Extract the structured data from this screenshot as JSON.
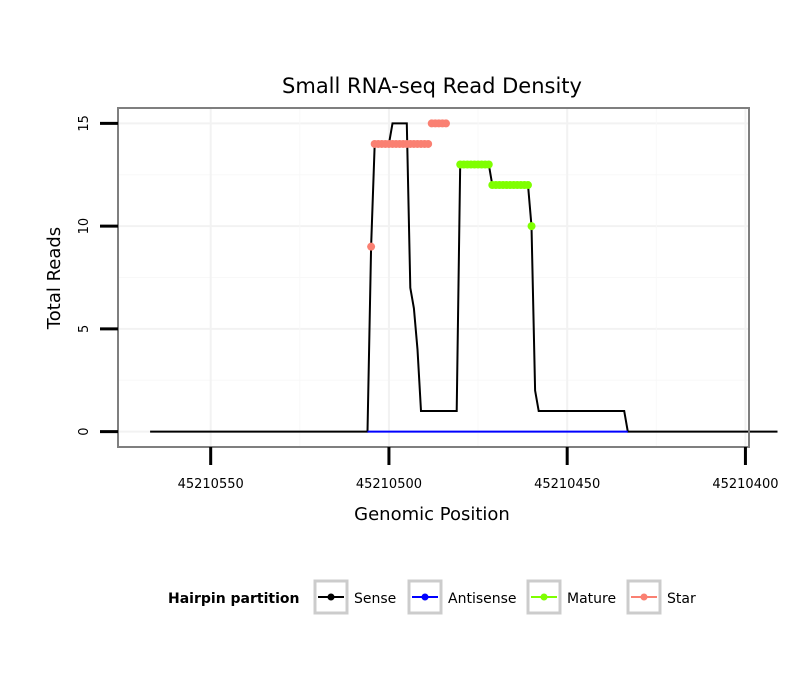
{
  "chart_data": {
    "type": "line",
    "title": "Small RNA-seq Read Density",
    "xlabel": "Genomic Position",
    "ylabel": "Total Reads",
    "x_reversed": true,
    "xlim": [
      45210576,
      45210399
    ],
    "ylim": [
      -0.75,
      15.75
    ],
    "x_ticks": [
      45210550,
      45210500,
      45210450,
      45210400
    ],
    "x_tick_labels": [
      "45210550",
      "45210500",
      "45210450",
      "45210400"
    ],
    "y_ticks": [
      0,
      5,
      10,
      15
    ],
    "y_tick_labels": [
      "0",
      "5",
      "10",
      "15"
    ],
    "grid": true,
    "legend": {
      "title": "Hairpin partition",
      "position": "bottom",
      "entries": [
        "Sense",
        "Antisense",
        "Mature",
        "Star"
      ]
    },
    "colors": {
      "Sense": "#000000",
      "Antisense": "#0000ff",
      "Mature": "#7fff00",
      "Star": "#fa8072"
    },
    "series": [
      {
        "name": "Sense",
        "kind": "line",
        "x": [
          45210567,
          45210506,
          45210505,
          45210504,
          45210503,
          45210500,
          45210499,
          45210495,
          45210494,
          45210493,
          45210492,
          45210491,
          45210490,
          45210481,
          45210480,
          45210472,
          45210471,
          45210461,
          45210460,
          45210459,
          45210458,
          45210434,
          45210433,
          45210391
        ],
        "y": [
          0,
          0,
          9,
          14,
          14,
          14,
          15,
          15,
          7,
          6,
          4,
          1,
          1,
          1,
          13,
          13,
          12,
          12,
          10,
          2,
          1,
          1,
          0,
          0
        ]
      },
      {
        "name": "Antisense",
        "kind": "line",
        "x": [
          45210506,
          45210433
        ],
        "y": [
          0,
          0
        ]
      },
      {
        "name": "Mature",
        "kind": "points",
        "x": [
          45210480,
          45210479,
          45210478,
          45210477,
          45210476,
          45210475,
          45210474,
          45210473,
          45210472,
          45210471,
          45210470,
          45210469,
          45210468,
          45210467,
          45210466,
          45210465,
          45210464,
          45210463,
          45210462,
          45210461,
          45210460
        ],
        "y": [
          13,
          13,
          13,
          13,
          13,
          13,
          13,
          13,
          13,
          12,
          12,
          12,
          12,
          12,
          12,
          12,
          12,
          12,
          12,
          12,
          10
        ]
      },
      {
        "name": "Star",
        "kind": "points",
        "x": [
          45210505,
          45210504,
          45210503,
          45210502,
          45210501,
          45210500,
          45210499,
          45210498,
          45210497,
          45210496,
          45210495,
          45210494,
          45210493,
          45210492,
          45210491,
          45210490,
          45210489,
          45210488,
          45210487,
          45210486,
          45210485,
          45210484
        ],
        "y": [
          9,
          14,
          14,
          14,
          14,
          14,
          14,
          14,
          14,
          14,
          14,
          14,
          14,
          14,
          14,
          14,
          14,
          15,
          15,
          15,
          15,
          15
        ]
      }
    ]
  }
}
